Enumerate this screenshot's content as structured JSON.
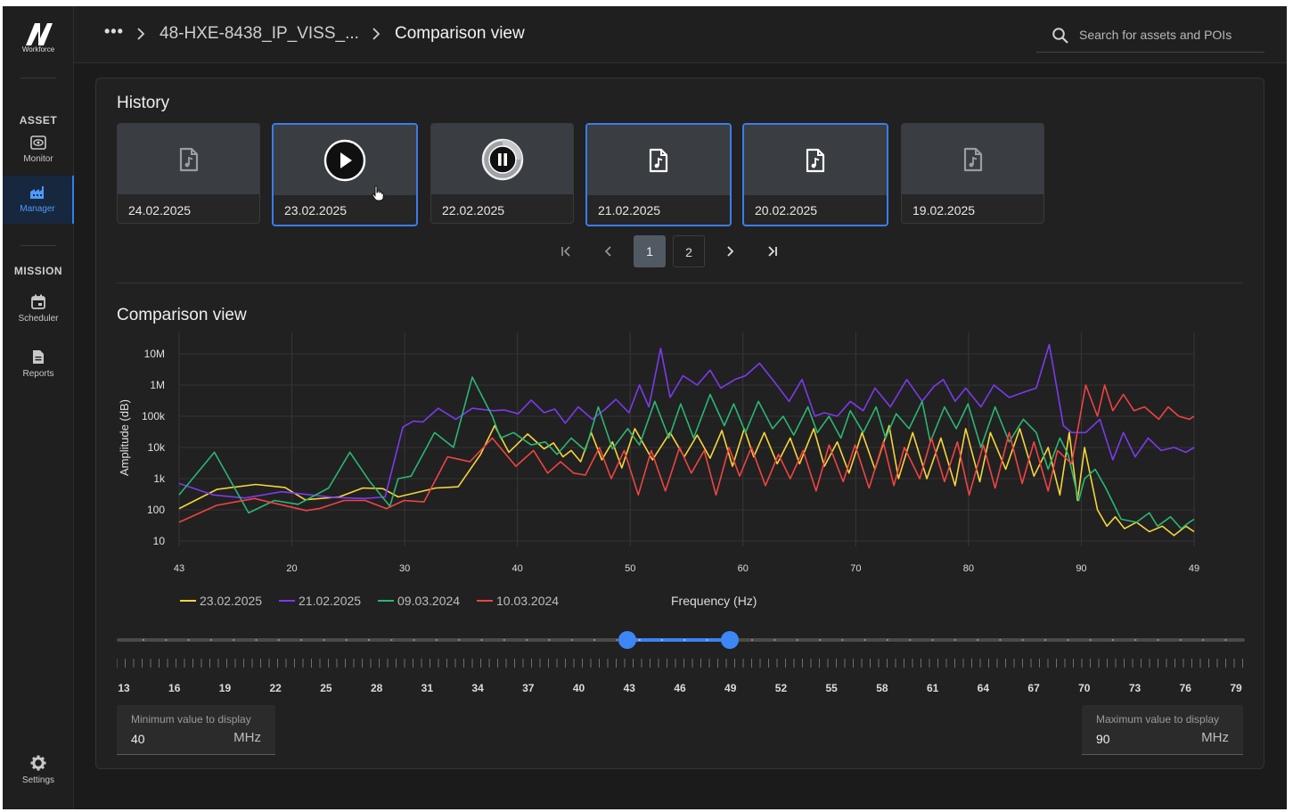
{
  "logo": {
    "mark": "N",
    "word": "Workforce"
  },
  "sidebar": {
    "section_asset": "ASSET",
    "monitor_label": "Monitor",
    "manager_label": "Manager",
    "section_mission": "MISSION",
    "scheduler_label": "Scheduler",
    "reports_label": "Reports",
    "settings_label": "Settings"
  },
  "topbar": {
    "ellipsis": "•••",
    "asset_crumb": "48-HXE-8438_IP_VISS_...",
    "current": "Comparison view",
    "search_placeholder": "Search for assets and POIs"
  },
  "history": {
    "title": "History",
    "items": [
      {
        "date": "24.02.2025",
        "state": "file"
      },
      {
        "date": "23.02.2025",
        "state": "play"
      },
      {
        "date": "22.02.2025",
        "state": "pause"
      },
      {
        "date": "21.02.2025",
        "state": "file"
      },
      {
        "date": "20.02.2025",
        "state": "file"
      },
      {
        "date": "19.02.2025",
        "state": "file"
      }
    ],
    "pagination": {
      "pages": [
        "1",
        "2"
      ],
      "current": "1"
    }
  },
  "comparison": {
    "title": "Comparison view",
    "min_field": {
      "label": "Minimum value to display",
      "value": "40",
      "unit": "MHz"
    },
    "max_field": {
      "label": "Maximum value to display",
      "value": "90",
      "unit": "MHz"
    },
    "range_slider": {
      "min": 13,
      "max": 79,
      "low": 43,
      "high": 49,
      "labels": [
        "13",
        "16",
        "19",
        "22",
        "25",
        "28",
        "31",
        "34",
        "37",
        "40",
        "43",
        "46",
        "49",
        "52",
        "55",
        "58",
        "61",
        "64",
        "67",
        "70",
        "73",
        "76",
        "79"
      ]
    }
  },
  "chart_data": {
    "type": "line",
    "xlabel": "Frequency (Hz)",
    "ylabel": "Amplitude (dB)",
    "y_scale": "log",
    "ylim": [
      10,
      10000000
    ],
    "y_ticks": [
      "10",
      "100",
      "1k",
      "10k",
      "100k",
      "1M",
      "10M"
    ],
    "x_tick_labels": [
      "43",
      "20",
      "30",
      "40",
      "50",
      "60",
      "70",
      "80",
      "90",
      "49"
    ],
    "x_range": [
      13.5,
      99.7
    ],
    "grid": true,
    "legend_position": "bottom-left",
    "series": [
      {
        "name": "23.02.2025",
        "color": "#f5d53b",
        "x": [
          13.5,
          16.7,
          20.0,
          22.5,
          24.2,
          27.1,
          29.1,
          30.8,
          32.1,
          35.3,
          37.2,
          39.1,
          40.3,
          41.5,
          43.1,
          44.5,
          45.3,
          46.1,
          46.8,
          47.6,
          48.5,
          49.4,
          50.3,
          51.1,
          52.2,
          53.7,
          55.2,
          56.4,
          57.5,
          58.6,
          59.6,
          60.5,
          61.5,
          62.3,
          63.2,
          64.3,
          65.4,
          66.2,
          67.4,
          68.3,
          69.4,
          70.4,
          71.5,
          72.6,
          73.8,
          74.6,
          75.8,
          77.0,
          78.2,
          79.4,
          80.3,
          81.5,
          82.4,
          83.7,
          84.9,
          86.1,
          87.3,
          88.3,
          89.1,
          89.8,
          90.4,
          91.5,
          92.3,
          93.0,
          93.8,
          94.8,
          95.9,
          97.0,
          98.0,
          99.0,
          99.7
        ],
        "y": [
          110,
          450,
          650,
          520,
          210,
          260,
          500,
          480,
          260,
          500,
          550,
          6000,
          50000,
          7000,
          27000,
          9000,
          14000,
          5000,
          8000,
          3500,
          30000,
          4000,
          15000,
          2200,
          40000,
          4000,
          30000,
          5000,
          25000,
          4500,
          35000,
          2500,
          40000,
          5000,
          30000,
          3000,
          20000,
          3000,
          40000,
          2500,
          15000,
          1500,
          30000,
          2000,
          50000,
          1000,
          30000,
          1000,
          20000,
          600,
          40000,
          800,
          30000,
          2000,
          40000,
          1200,
          10000,
          300,
          30000,
          200,
          10000,
          100,
          30,
          60,
          25,
          40,
          20,
          30,
          15,
          30,
          20
        ]
      },
      {
        "name": "21.02.2025",
        "color": "#7c3aed",
        "x": [
          13.5,
          16.4,
          19.1,
          22.2,
          24.4,
          26.6,
          29.2,
          31.0,
          32.5,
          33.4,
          34.2,
          35.5,
          37.0,
          38.4,
          40.2,
          41.1,
          42.3,
          43.4,
          44.5,
          45.4,
          46.3,
          47.4,
          48.6,
          49.7,
          50.6,
          51.7,
          52.6,
          53.4,
          54.4,
          55.2,
          56.3,
          57.5,
          58.6,
          59.5,
          60.7,
          61.6,
          62.8,
          64.1,
          65.3,
          66.4,
          67.5,
          68.3,
          69.4,
          70.5,
          71.6,
          72.6,
          73.9,
          75.3,
          76.6,
          77.6,
          78.4,
          79.4,
          80.3,
          81.6,
          82.7,
          84.0,
          85.3,
          86.3,
          87.4,
          88.6,
          89.3,
          90.5,
          91.7,
          92.8,
          93.7,
          94.7,
          95.8,
          96.9,
          98.0,
          99.0,
          99.7
        ],
        "y": [
          700,
          300,
          240,
          380,
          310,
          250,
          230,
          260,
          45000,
          70000,
          65000,
          180000,
          80000,
          180000,
          150000,
          160000,
          120000,
          330000,
          130000,
          170000,
          60000,
          200000,
          80000,
          170000,
          350000,
          130000,
          1000000,
          200000,
          15000000,
          400000,
          2000000,
          1000000,
          3000000,
          800000,
          1500000,
          2000000,
          5000000,
          1200000,
          300000,
          1500000,
          100000,
          130000,
          100000,
          300000,
          150000,
          800000,
          200000,
          1500000,
          300000,
          900000,
          1500000,
          300000,
          800000,
          200000,
          1000000,
          400000,
          600000,
          800000,
          20000000,
          50000,
          30000,
          30000,
          80000,
          4000,
          30000,
          5000,
          20000,
          8000,
          10000,
          7000,
          10000
        ]
      },
      {
        "name": "09.03.2024",
        "color": "#2bb673",
        "x": [
          13.5,
          16.5,
          19.4,
          21.6,
          23.6,
          26.2,
          28.0,
          29.7,
          31.4,
          32.1,
          33.2,
          35.2,
          36.8,
          38.4,
          40.1,
          40.8,
          41.9,
          43.4,
          44.6,
          45.6,
          46.8,
          48.0,
          49.1,
          50.3,
          51.6,
          52.6,
          53.9,
          55.1,
          56.1,
          57.2,
          58.6,
          59.8,
          60.6,
          61.6,
          62.7,
          63.9,
          64.8,
          65.7,
          66.9,
          67.7,
          68.7,
          69.7,
          70.5,
          71.6,
          72.7,
          73.5,
          74.4,
          75.5,
          76.6,
          77.3,
          78.5,
          79.5,
          80.5,
          81.6,
          82.8,
          84.0,
          85.2,
          86.3,
          87.3,
          88.3,
          89.0,
          89.9,
          90.4,
          91.3,
          92.2,
          93.5,
          94.8,
          95.9,
          96.6,
          97.7,
          98.6,
          99.3,
          99.7
        ],
        "y": [
          300,
          7000,
          80,
          200,
          150,
          500,
          7000,
          800,
          130,
          1000,
          1200,
          30000,
          10000,
          1800000,
          100000,
          20000,
          30000,
          12000,
          15000,
          6000,
          20000,
          8000,
          200000,
          9000,
          40000,
          12000,
          300000,
          20000,
          250000,
          20000,
          500000,
          50000,
          250000,
          30000,
          300000,
          40000,
          100000,
          25000,
          200000,
          30000,
          100000,
          20000,
          150000,
          30000,
          200000,
          20000,
          120000,
          40000,
          300000,
          15000,
          200000,
          40000,
          250000,
          10000,
          200000,
          15000,
          80000,
          30000,
          2000,
          20000,
          6000,
          200,
          1000,
          2000,
          500,
          50,
          40,
          80,
          30,
          60,
          25,
          40,
          50
        ]
      },
      {
        "name": "10.03.2024",
        "color": "#f04343",
        "x": [
          13.5,
          16.7,
          19.9,
          22.0,
          24.3,
          25.4,
          27.5,
          29.3,
          31.1,
          32.6,
          34.3,
          36.3,
          38.2,
          40.1,
          42.1,
          43.6,
          44.8,
          45.9,
          47.0,
          48.0,
          49.2,
          50.2,
          51.3,
          52.5,
          53.6,
          54.8,
          56.0,
          57.0,
          58.1,
          59.1,
          60.2,
          61.1,
          62.1,
          63.3,
          64.4,
          65.4,
          66.5,
          67.6,
          68.7,
          69.9,
          70.9,
          72.1,
          73.3,
          74.2,
          75.1,
          76.4,
          77.4,
          78.5,
          79.6,
          80.6,
          81.8,
          82.8,
          84.0,
          85.1,
          86.1,
          87.3,
          88.1,
          89.3,
          90.5,
          91.5,
          92.1,
          92.8,
          93.7,
          94.6,
          95.5,
          96.7,
          97.5,
          98.4,
          99.3,
          99.7
        ],
        "y": [
          40,
          140,
          230,
          150,
          95,
          110,
          200,
          200,
          110,
          200,
          180,
          5000,
          3500,
          20000,
          2500,
          8000,
          1500,
          3500,
          1500,
          1300,
          10000,
          1000,
          8000,
          300,
          8000,
          400,
          10000,
          1500,
          8000,
          300,
          10000,
          1200,
          10000,
          600,
          6000,
          1000,
          8000,
          400,
          12000,
          800,
          12000,
          500,
          15000,
          600,
          10000,
          1000,
          20000,
          800,
          15000,
          300,
          12000,
          500,
          30000,
          700,
          15000,
          400,
          8000,
          3000,
          1000000,
          100000,
          1000000,
          150000,
          500000,
          150000,
          200000,
          80000,
          200000,
          100000,
          80000,
          100000
        ]
      }
    ]
  }
}
